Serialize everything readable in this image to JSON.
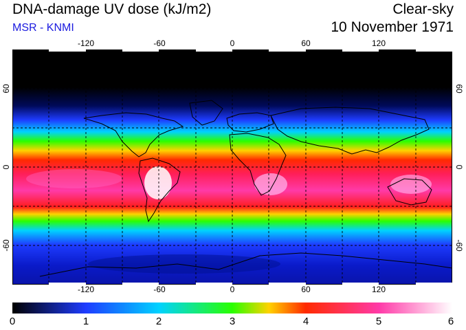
{
  "header": {
    "title": "DNA-damage UV dose (kJ/m2)",
    "subtitle": "MSR - KNMI",
    "condition": "Clear-sky",
    "date": "10 November 1971"
  },
  "map": {
    "lon_ticks": [
      "-120",
      "-60",
      "0",
      "60",
      "120"
    ],
    "lat_ticks_left": [
      "60",
      "0",
      "-60"
    ],
    "lat_ticks_right": [
      "60",
      "0",
      "-60"
    ],
    "lon_range": [
      -180,
      180
    ],
    "lat_range": [
      -90,
      90
    ]
  },
  "colorbar": {
    "labels": [
      "0",
      "1",
      "2",
      "3",
      "4",
      "5",
      "6"
    ],
    "min": 0,
    "max": 6,
    "stops": [
      "#000000",
      "#1e3cff",
      "#00d2ff",
      "#2aff00",
      "#ff2a00",
      "#ff3aa8",
      "#ffffff"
    ]
  }
}
